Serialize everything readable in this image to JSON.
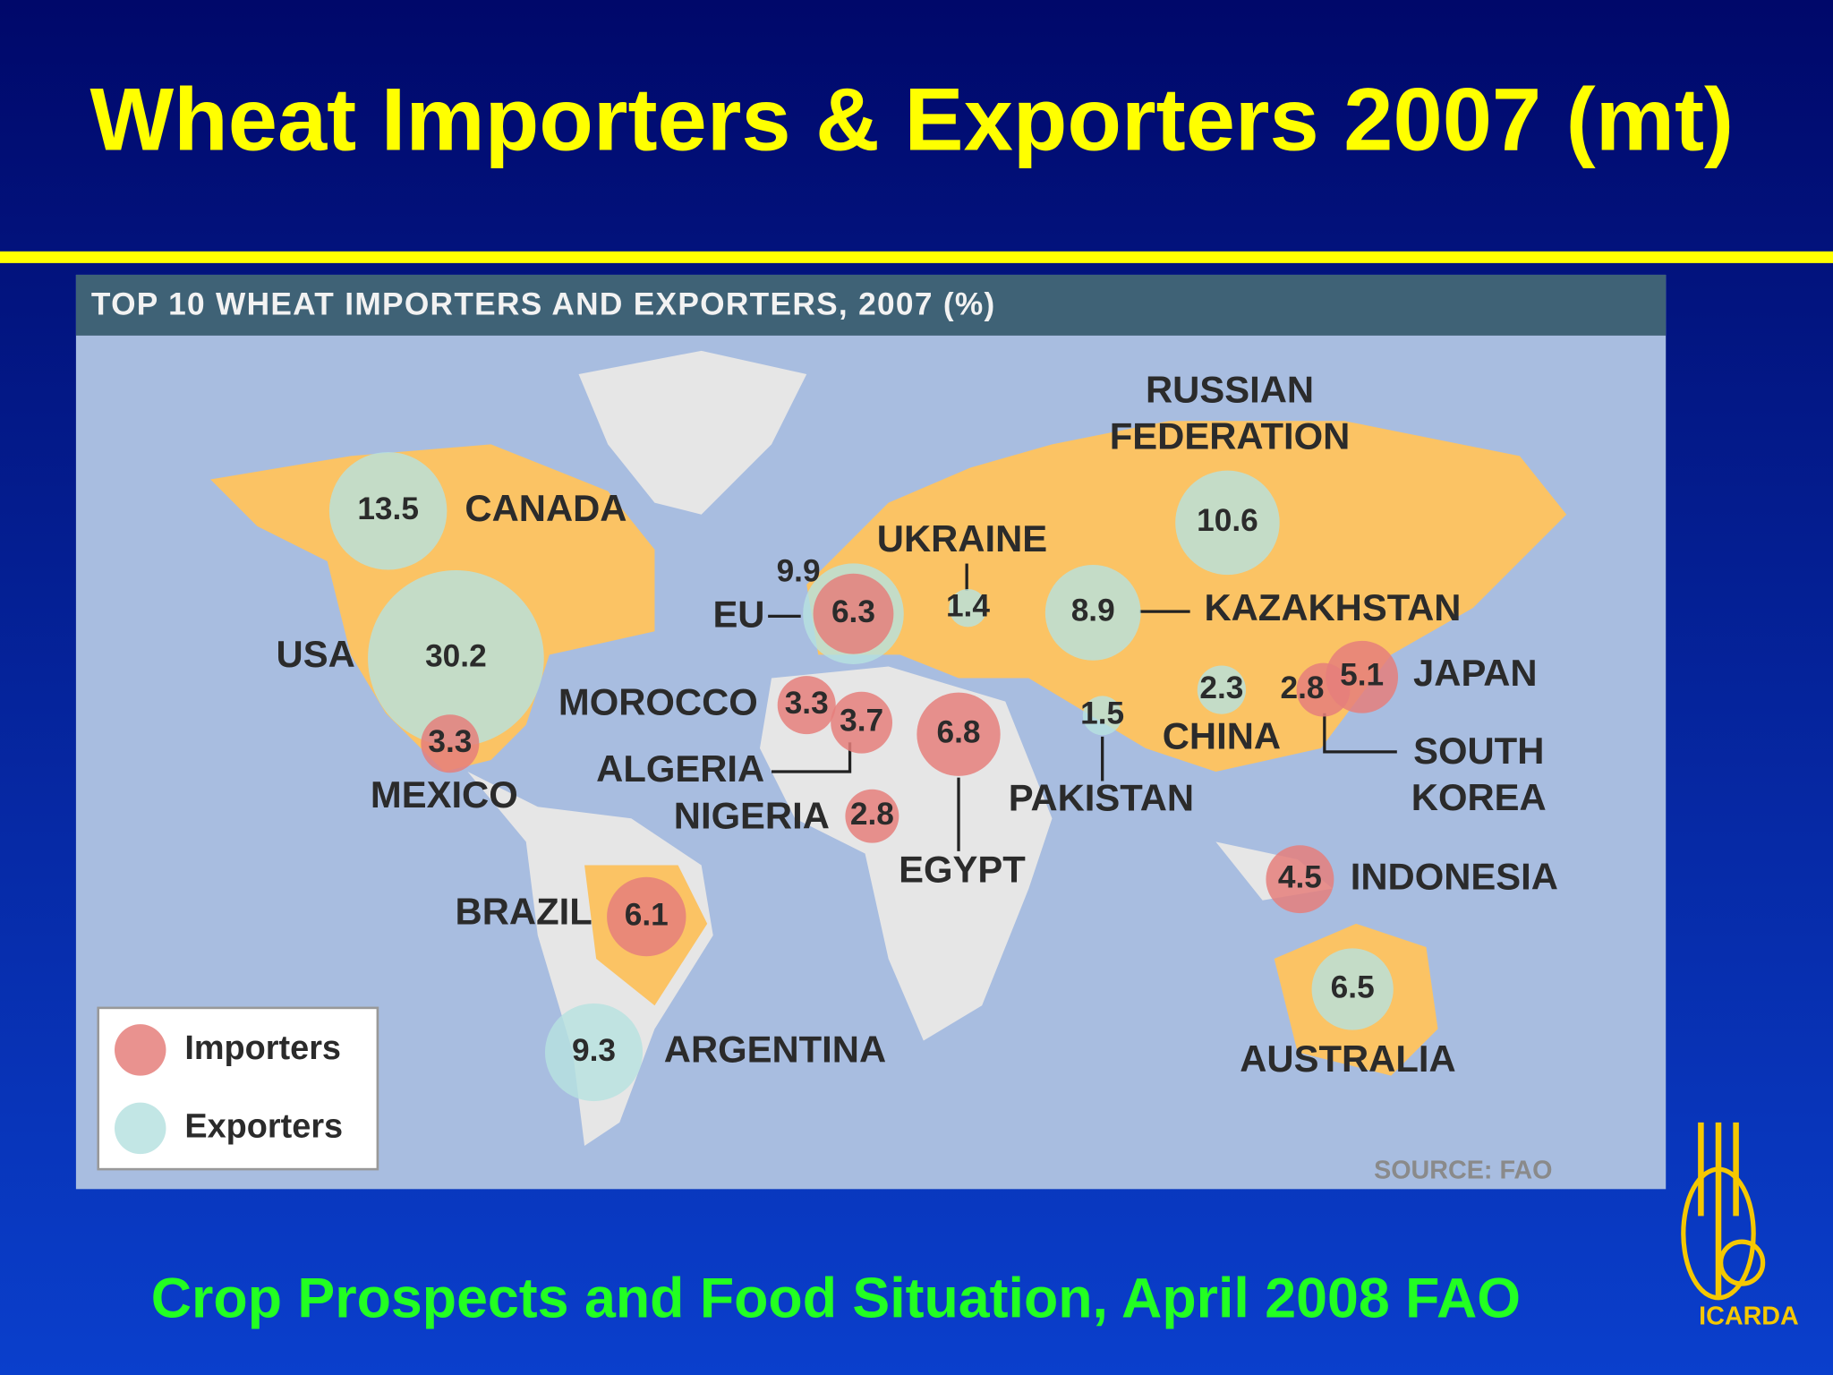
{
  "title": "Wheat Importers & Exporters 2007 (mt)",
  "map": {
    "title": "TOP 10 WHEAT IMPORTERS AND EXPORTERS, 2007 (%)",
    "source": "SOURCE: FAO",
    "importers": {
      "name": "Importers",
      "color": "#e57f7b",
      "countries": [
        {
          "name": "EU",
          "value": 6.3
        },
        {
          "name": "MOROCCO",
          "value": 3.3
        },
        {
          "name": "ALGERIA",
          "value": 3.7
        },
        {
          "name": "EGYPT",
          "value": 6.8
        },
        {
          "name": "NIGERIA",
          "value": 2.8
        },
        {
          "name": "BRAZIL",
          "value": 6.1
        },
        {
          "name": "MEXICO",
          "value": 3.3
        },
        {
          "name": "JAPAN",
          "value": 5.1
        },
        {
          "name": "SOUTH KOREA",
          "value": 2.8
        },
        {
          "name": "INDONESIA",
          "value": 4.5
        }
      ]
    },
    "exporters": {
      "name": "Exporters",
      "color": "#b7e2e0",
      "countries": [
        {
          "name": "USA",
          "value": 30.2
        },
        {
          "name": "CANADA",
          "value": 13.5
        },
        {
          "name": "RUSSIAN FEDERATION",
          "value": 10.6
        },
        {
          "value": 9.9
        },
        {
          "name": "ARGENTINA",
          "value": 9.3
        },
        {
          "name": "KAZAKHSTAN",
          "value": 8.9
        },
        {
          "name": "AUSTRALIA",
          "value": 6.5
        },
        {
          "name": "CHINA",
          "value": 2.3
        },
        {
          "name": "UKRAINE",
          "value": 1.4
        },
        {
          "name": "PAKISTAN",
          "value": 1.5
        }
      ]
    }
  },
  "footer": "Crop Prospects and Food Situation, April 2008 FAO",
  "logo": "ICARDA"
}
